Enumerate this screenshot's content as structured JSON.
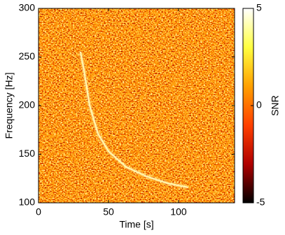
{
  "chart_data": {
    "type": "line",
    "x_label": "Time [s]",
    "y_label": "Frequency [Hz]",
    "x": [
      30,
      32.5,
      36.5,
      42.5,
      50,
      62.5,
      77.5,
      92.5,
      106.5
    ],
    "values": [
      255,
      236,
      200,
      171,
      153,
      137,
      127,
      120,
      116
    ],
    "color": "#fff6b0",
    "xlim": [
      0,
      140
    ],
    "xticks": [
      0,
      50,
      100
    ],
    "ylim": [
      100,
      300
    ],
    "yticks": [
      100,
      150,
      200,
      250,
      300
    ],
    "colorbar": {
      "label": "SNR",
      "lim": [
        -5,
        5
      ],
      "ticks": [
        -5,
        0,
        5
      ],
      "colormap": [
        "#000000",
        "#b00000",
        "#ff4000",
        "#ffa000",
        "#ffff40",
        "#ffffff"
      ]
    }
  }
}
